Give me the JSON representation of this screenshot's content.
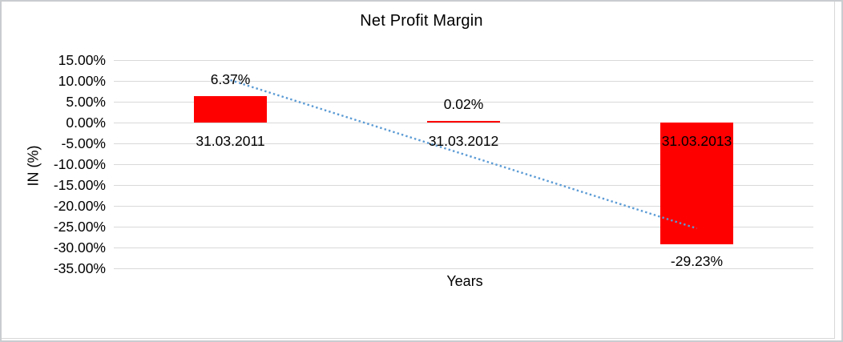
{
  "window": {
    "background": "#ffffff",
    "border_color": "#c9cdd0"
  },
  "chart_data": {
    "type": "bar",
    "title": "Net Profit Margin",
    "xlabel": "Years",
    "ylabel": "IN (%)",
    "categories": [
      "31.03.2011",
      "31.03.2012",
      "31.03.2013"
    ],
    "values": [
      6.37,
      0.02,
      -29.23
    ],
    "data_labels": [
      "6.37%",
      "0.02%",
      "-29.23%"
    ],
    "ylim": [
      -35,
      15
    ],
    "ytick_step": 5,
    "ytick_values": [
      15,
      10,
      5,
      0,
      -5,
      -10,
      -15,
      -20,
      -25,
      -30,
      -35
    ],
    "ytick_labels": [
      "15.00%",
      "10.00%",
      "5.00%",
      "0.00%",
      "-5.00%",
      "-10.00%",
      "-15.00%",
      "-20.00%",
      "-25.00%",
      "-30.00%",
      "-35.00%"
    ],
    "grid": true,
    "legend": "none",
    "bar_color": "#ff0000",
    "gridline_color": "#d9d9d9",
    "text_color": "#000000",
    "trendline": {
      "style": "dotted",
      "color": "#5b9bd5",
      "start_category_index": 0,
      "end_category_index": 2,
      "start_value": 10.19,
      "end_value": -25.41
    }
  }
}
